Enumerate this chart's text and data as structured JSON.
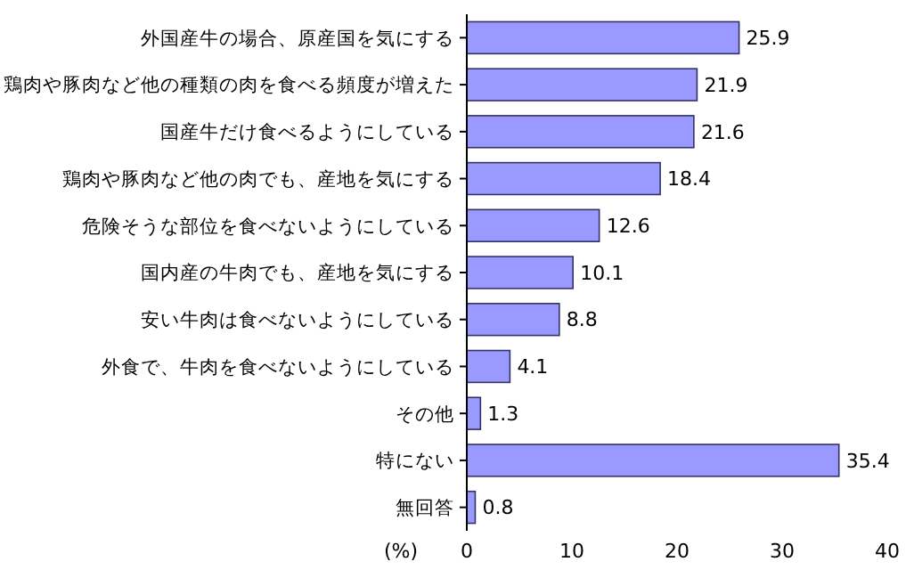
{
  "chart_data": {
    "type": "bar",
    "orientation": "horizontal",
    "xlabel": "(%)",
    "categories": [
      "外国産牛の場合、原産国を気にする",
      "鶏肉や豚肉など他の種類の肉を食べる頻度が増えた",
      "国産牛だけ食べるようにしている",
      "鶏肉や豚肉など他の肉でも、産地を気にする",
      "危険そうな部位を食べないようにしている",
      "国内産の牛肉でも、産地を気にする",
      "安い牛肉は食べないようにしている",
      "外食で、牛肉を食べないようにしている",
      "その他",
      "特にない",
      "無回答"
    ],
    "values": [
      25.9,
      21.9,
      21.6,
      18.4,
      12.6,
      10.1,
      8.8,
      4.1,
      1.3,
      35.4,
      0.8
    ],
    "color": "#9999ff",
    "xlim": [
      0,
      40
    ],
    "xticks": [
      0,
      10,
      20,
      30,
      40
    ],
    "data_labels": true,
    "grid": false
  }
}
